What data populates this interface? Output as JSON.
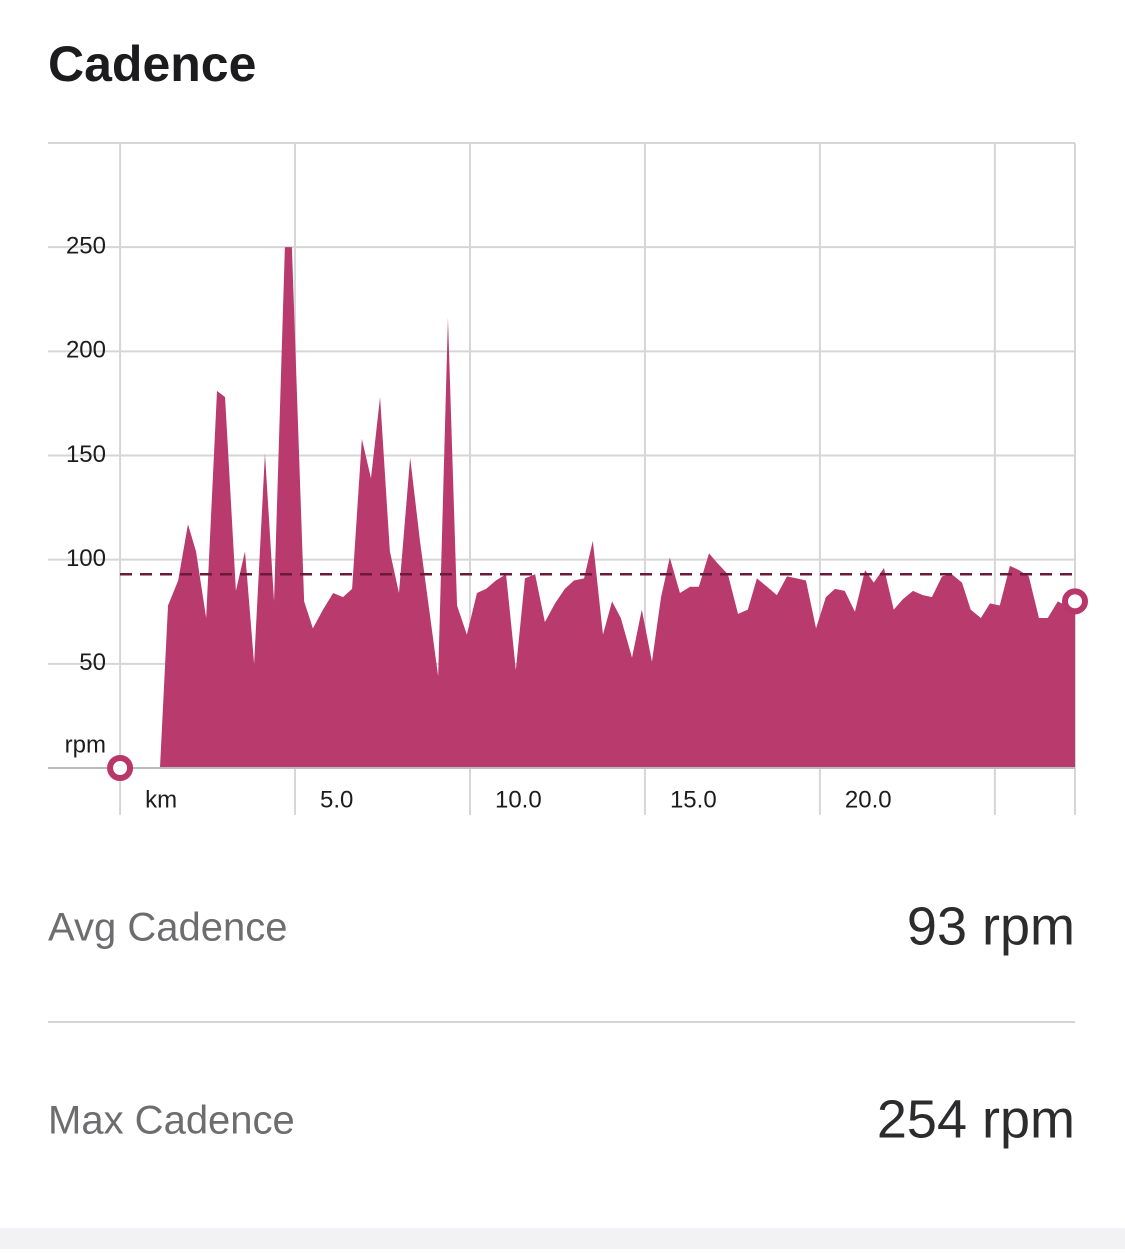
{
  "chart_data": {
    "type": "area",
    "title": "Cadence",
    "y_label": "rpm",
    "color": "#b8366a",
    "x": [
      1.14,
      1.37,
      1.66,
      1.94,
      2.17,
      2.46,
      2.77,
      3.0,
      3.31,
      3.57,
      3.83,
      4.14,
      4.4,
      4.71,
      4.91,
      5.26,
      5.51,
      5.8,
      6.09,
      6.37,
      6.63,
      6.91,
      7.17,
      7.43,
      7.71,
      7.97,
      8.29,
      8.57,
      9.09,
      9.37,
      9.63,
      9.91,
      10.2,
      10.46,
      10.74,
      11.03,
      11.31,
      11.57,
      11.86,
      12.14,
      12.43,
      12.71,
      12.97,
      13.26,
      13.51,
      13.8,
      14.06,
      14.31,
      14.63,
      14.91,
      15.2,
      15.46,
      15.71,
      16.0,
      16.29,
      16.54,
      16.83,
      17.09,
      17.37,
      17.66,
      17.94,
      18.2,
      18.49,
      18.77,
      19.06,
      19.34,
      19.6,
      19.89,
      20.17,
      20.43,
      20.71,
      21.0,
      21.29,
      21.54,
      21.83,
      22.11,
      22.37,
      22.66,
      22.94,
      23.2,
      23.49,
      23.77,
      24.06,
      24.31,
      24.6,
      24.86,
      25.14,
      25.43,
      25.69,
      25.97,
      26.26,
      26.51,
      26.8,
      27.03,
      27.29
    ],
    "values": [
      0,
      78,
      90,
      117,
      104,
      72,
      181,
      178,
      85,
      104,
      50,
      151,
      80,
      250,
      250,
      80,
      67,
      76,
      84,
      82,
      86,
      158,
      139,
      178,
      104,
      84,
      149,
      109,
      44,
      216,
      78,
      64,
      84,
      86,
      90,
      93,
      47,
      91,
      93,
      70,
      79,
      86,
      90,
      91,
      109,
      64,
      80,
      72,
      53,
      76,
      51,
      82,
      101,
      84,
      87,
      87,
      103,
      98,
      93,
      74,
      76,
      91,
      87,
      83,
      92,
      91,
      90,
      67,
      82,
      86,
      85,
      75,
      95,
      89,
      96,
      76,
      81,
      85,
      83,
      82,
      92,
      93,
      89,
      76,
      72,
      79,
      78,
      97,
      95,
      92,
      72,
      72,
      80,
      78,
      80
    ],
    "xlim": [
      -2.06,
      27.29
    ],
    "ylim": [
      0,
      300
    ],
    "xticks": [
      {
        "value": 0,
        "label": "km"
      },
      {
        "value": 5,
        "label": "5.0"
      },
      {
        "value": 10,
        "label": "10.0"
      },
      {
        "value": 15,
        "label": "15.0"
      },
      {
        "value": 20,
        "label": "20.0"
      },
      {
        "value": 25,
        "label": null
      }
    ],
    "yticks": [
      50,
      100,
      150,
      200,
      250
    ],
    "grid": true
  },
  "stats": [
    {
      "label": "Avg Cadence",
      "value": 93,
      "value_label": "93 rpm"
    },
    {
      "label": "Max Cadence",
      "value": 254,
      "value_label": "254 rpm"
    }
  ]
}
